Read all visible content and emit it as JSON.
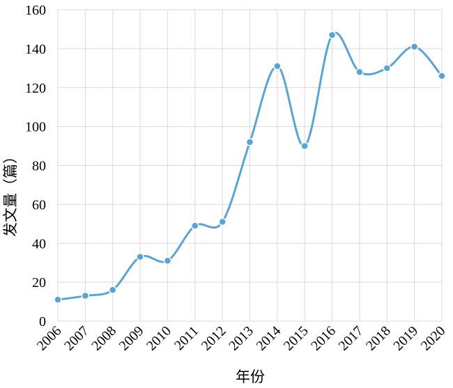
{
  "chart_data": {
    "type": "line",
    "categories": [
      "2006",
      "2007",
      "2008",
      "2009",
      "2010",
      "2011",
      "2012",
      "2013",
      "2014",
      "2015",
      "2016",
      "2017",
      "2018",
      "2019",
      "2020"
    ],
    "series": [
      {
        "values": [
          11,
          13,
          16,
          33,
          31,
          49,
          51,
          92,
          131,
          90,
          147,
          128,
          130,
          141,
          126
        ],
        "color": "#5ba3d3"
      }
    ],
    "title": "",
    "xlabel": "年份",
    "ylabel": "发文量（篇）",
    "ylim": [
      0,
      160
    ],
    "yticks": [
      0,
      20,
      40,
      60,
      80,
      100,
      120,
      140,
      160
    ],
    "grid": true,
    "legend": "none",
    "smooth": true
  }
}
